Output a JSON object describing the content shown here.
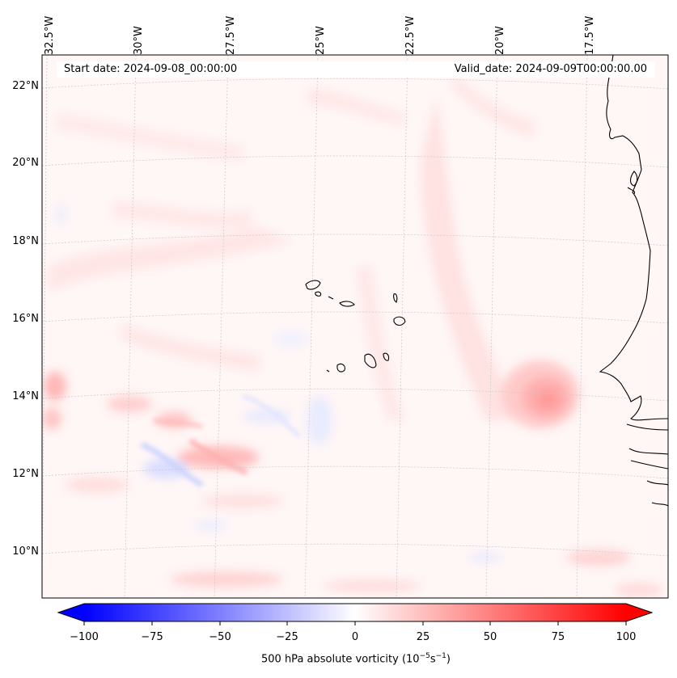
{
  "header": {
    "start_date": "Start date: 2024-09-08_00:00:00",
    "valid_date": "Valid_date: 2024-09-09T00:00:00.00"
  },
  "map": {
    "lon_labels": [
      "32.5°W",
      "30°W",
      "27.5°W",
      "25°W",
      "22.5°W",
      "20°W",
      "17.5°W"
    ],
    "lat_labels": [
      "22°N",
      "20°N",
      "18°N",
      "16°N",
      "14°N",
      "12°N",
      "10°N"
    ],
    "colors": {
      "positive": "#ff0000",
      "negative": "#0000ff",
      "coastline": "#000000",
      "gridline": "#cccccc"
    }
  },
  "colorbar": {
    "ticks": [
      "−100",
      "−75",
      "−50",
      "−25",
      "0",
      "25",
      "50",
      "75",
      "100"
    ],
    "min": -100,
    "max": 100,
    "title_prefix": "500 hPa absolute vorticity (10",
    "title_exp1": "−5",
    "title_mid": "s",
    "title_exp2": "−1",
    "title_suffix": ")"
  }
}
